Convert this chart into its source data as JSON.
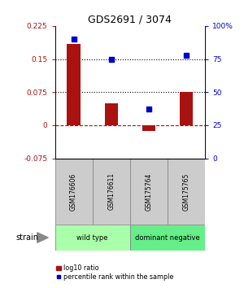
{
  "title": "GDS2691 / 3074",
  "samples": [
    "GSM176606",
    "GSM176611",
    "GSM175764",
    "GSM175765"
  ],
  "log10_ratio": [
    0.185,
    0.05,
    -0.012,
    0.075
  ],
  "percentile_rank": [
    90,
    75,
    37,
    78
  ],
  "ylim_left": [
    -0.075,
    0.225
  ],
  "ylim_right": [
    0,
    100
  ],
  "yticks_left": [
    -0.075,
    0,
    0.075,
    0.15,
    0.225
  ],
  "yticks_right": [
    0,
    25,
    50,
    75,
    100
  ],
  "ytick_labels_left": [
    "-0.075",
    "0",
    "0.075",
    "0.15",
    "0.225"
  ],
  "ytick_labels_right": [
    "0",
    "25",
    "50",
    "75",
    "100%"
  ],
  "hlines_dotted": [
    0.075,
    0.15
  ],
  "hline_dashed_val": 0,
  "bar_color": "#aa1111",
  "dot_color": "#0000cc",
  "groups": [
    {
      "label": "wild type",
      "indices": [
        0,
        1
      ],
      "color": "#aaffaa"
    },
    {
      "label": "dominant negative",
      "indices": [
        2,
        3
      ],
      "color": "#66ee88"
    }
  ],
  "strain_label": "strain",
  "legend_bar_label": "log10 ratio",
  "legend_dot_label": "percentile rank within the sample",
  "background_color": "#ffffff",
  "sample_box_color": "#cccccc",
  "bar_width": 0.35
}
